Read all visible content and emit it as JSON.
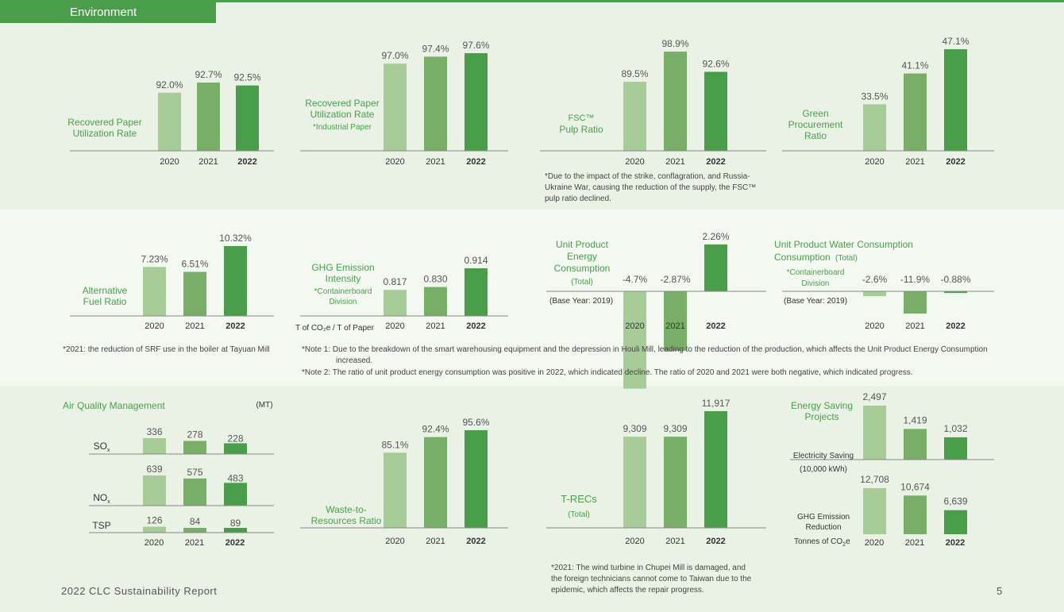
{
  "section_title": "Environment",
  "footer": {
    "report": "2022 CLC Sustainability Report",
    "page": "5"
  },
  "colors": {
    "y2020": "#a8cc98",
    "y2021": "#78ae68",
    "y2022": "#4a9e4b",
    "title": "#4a9e4b"
  },
  "notes": {
    "fsc": "*Due to the impact of the strike, conflagration, and Russia-Ukraine War, causing the reduction of the supply, the FSC™ pulp ratio declined.",
    "alt_fuel": "*2021: the reduction of SRF use in the boiler at Tayuan Mill",
    "note1": "*Note 1: Due to the breakdown of the smart warehousing equipment and the depression in Houli Mill, leading to the reduction of the production, which affects the Unit Product Energy Consumption increased.",
    "note2": "*Note 2: The ratio of unit product energy consumption was positive in 2022, which indicated decline. The ratio of 2020 and 2021 were both negative, which indicated progress.",
    "trecs": "*2021: The wind turbine in Chupei Mill is damaged, and the foreign technicians cannot come to Taiwan due to the epidemic, which affects the repair progress."
  },
  "chart_data": [
    {
      "id": "c1",
      "type": "bar",
      "title": "Recovered Paper Utilization Rate",
      "categories": [
        "2020",
        "2021",
        "2022"
      ],
      "values": [
        92.0,
        92.7,
        92.5
      ],
      "labels": [
        "92.0%",
        "92.7%",
        "92.5%"
      ]
    },
    {
      "id": "c2",
      "type": "bar",
      "title": "Recovered Paper Utilization Rate",
      "subtitle": "*Industrial Paper",
      "categories": [
        "2020",
        "2021",
        "2022"
      ],
      "values": [
        97.0,
        97.4,
        97.6
      ],
      "labels": [
        "97.0%",
        "97.4%",
        "97.6%"
      ]
    },
    {
      "id": "c3",
      "type": "bar",
      "title": "FSC™ Pulp Ratio",
      "categories": [
        "2020",
        "2021",
        "2022"
      ],
      "values": [
        89.5,
        98.9,
        92.6
      ],
      "labels": [
        "89.5%",
        "98.9%",
        "92.6%"
      ]
    },
    {
      "id": "c4",
      "type": "bar",
      "title": "Green Procurement Ratio",
      "categories": [
        "2020",
        "2021",
        "2022"
      ],
      "values": [
        33.5,
        41.1,
        47.1
      ],
      "labels": [
        "33.5%",
        "41.1%",
        "47.1%"
      ]
    },
    {
      "id": "c5",
      "type": "bar",
      "title": "Alternative Fuel Ratio",
      "categories": [
        "2020",
        "2021",
        "2022"
      ],
      "values": [
        7.23,
        6.51,
        10.32
      ],
      "labels": [
        "7.23%",
        "6.51%",
        "10.32%"
      ]
    },
    {
      "id": "c6",
      "type": "bar",
      "title": "GHG Emission Intensity",
      "subtitle": "*Containerboard Division",
      "unit": "T of CO₂e / T of Paper",
      "categories": [
        "2020",
        "2021",
        "2022"
      ],
      "values": [
        0.817,
        0.83,
        0.914
      ],
      "labels": [
        "0.817",
        "0.830",
        "0.914"
      ]
    },
    {
      "id": "c7",
      "type": "bar",
      "title": "Unit Product Energy Consumption",
      "subtitle": "(Total)",
      "base": "(Base Year: 2019)",
      "categories": [
        "2020",
        "2021",
        "2022"
      ],
      "values": [
        -4.7,
        -2.87,
        2.26
      ],
      "labels": [
        "-4.7%",
        "-2.87%",
        "2.26%"
      ]
    },
    {
      "id": "c8",
      "type": "bar",
      "title": "Unit Product Water Consumption",
      "title_suffix": "(Total)",
      "subtitle": "*Containerboard Division",
      "base": "(Base Year: 2019)",
      "categories": [
        "2020",
        "2021",
        "2022"
      ],
      "values": [
        -2.6,
        -11.9,
        -0.88
      ],
      "labels": [
        "-2.6%",
        "-11.9%",
        "-0.88%"
      ]
    },
    {
      "id": "c9",
      "type": "bar",
      "title": "Air Quality Management",
      "unit": "(MT)",
      "categories": [
        "2020",
        "2021",
        "2022"
      ],
      "series": [
        {
          "name": "SOx",
          "values": [
            336,
            278,
            228
          ],
          "labels": [
            "336",
            "278",
            "228"
          ]
        },
        {
          "name": "NOx",
          "values": [
            639,
            575,
            483
          ],
          "labels": [
            "639",
            "575",
            "483"
          ]
        },
        {
          "name": "TSP",
          "values": [
            126,
            84,
            89
          ],
          "labels": [
            "126",
            "84",
            "89"
          ]
        }
      ]
    },
    {
      "id": "c10",
      "type": "bar",
      "title": "Waste-to-Resources Ratio",
      "categories": [
        "2020",
        "2021",
        "2022"
      ],
      "values": [
        85.1,
        92.4,
        95.6
      ],
      "labels": [
        "85.1%",
        "92.4%",
        "95.6%"
      ]
    },
    {
      "id": "c11",
      "type": "bar",
      "title": "T-RECs",
      "subtitle": "(Total)",
      "categories": [
        "2020",
        "2021",
        "2022"
      ],
      "values": [
        9309,
        9309,
        11917
      ],
      "labels": [
        "9,309",
        "9,309",
        "11,917"
      ]
    },
    {
      "id": "c12",
      "type": "bar",
      "title": "Energy Saving Projects",
      "categories": [
        "2020",
        "2021",
        "2022"
      ],
      "series": [
        {
          "name": "Electricity Saving",
          "unit": "(10,000 kWh)",
          "values": [
            2497,
            1419,
            1032
          ],
          "labels": [
            "2,497",
            "1,419",
            "1,032"
          ]
        },
        {
          "name": "GHG Emission Reduction",
          "unit": "Tonnes of CO₂e",
          "values": [
            12708,
            10674,
            6639
          ],
          "labels": [
            "12,708",
            "10,674",
            "6,639"
          ]
        }
      ]
    }
  ]
}
